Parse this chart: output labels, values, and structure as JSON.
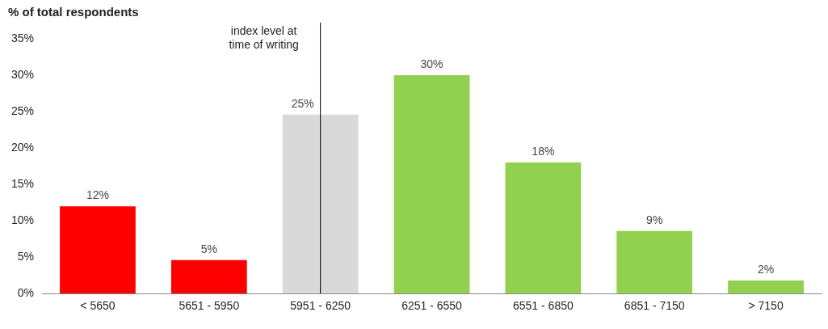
{
  "chart_data": {
    "type": "bar",
    "ylabel": "% of total respondents",
    "categories": [
      "< 5650",
      "5651 - 5950",
      "5951 - 6250",
      "6251 - 6550",
      "6551 - 6850",
      "6851 - 7150",
      "> 7150"
    ],
    "values": [
      12,
      4.6,
      24.6,
      30,
      18,
      8.6,
      1.8
    ],
    "value_labels": [
      "12%",
      "5%",
      "25%",
      "30%",
      "18%",
      "9%",
      "2%"
    ],
    "colors": [
      "#ff0000",
      "#ff0000",
      "#d9d9d9",
      "#92d050",
      "#92d050",
      "#92d050",
      "#92d050"
    ],
    "ylim": [
      0,
      35
    ],
    "yticks": [
      {
        "value": 0,
        "label": "0%"
      },
      {
        "value": 5,
        "label": "5%"
      },
      {
        "value": 10,
        "label": "10%"
      },
      {
        "value": 15,
        "label": "15%"
      },
      {
        "value": 20,
        "label": "20%"
      },
      {
        "value": 25,
        "label": "25%"
      },
      {
        "value": 30,
        "label": "30%"
      },
      {
        "value": 35,
        "label": "35%"
      }
    ],
    "grid": false,
    "legend": false,
    "ref_lines": [
      {
        "axis": "x",
        "value": "5951 - 6250",
        "label": "index level at time of writing",
        "color": "#000000"
      }
    ]
  }
}
